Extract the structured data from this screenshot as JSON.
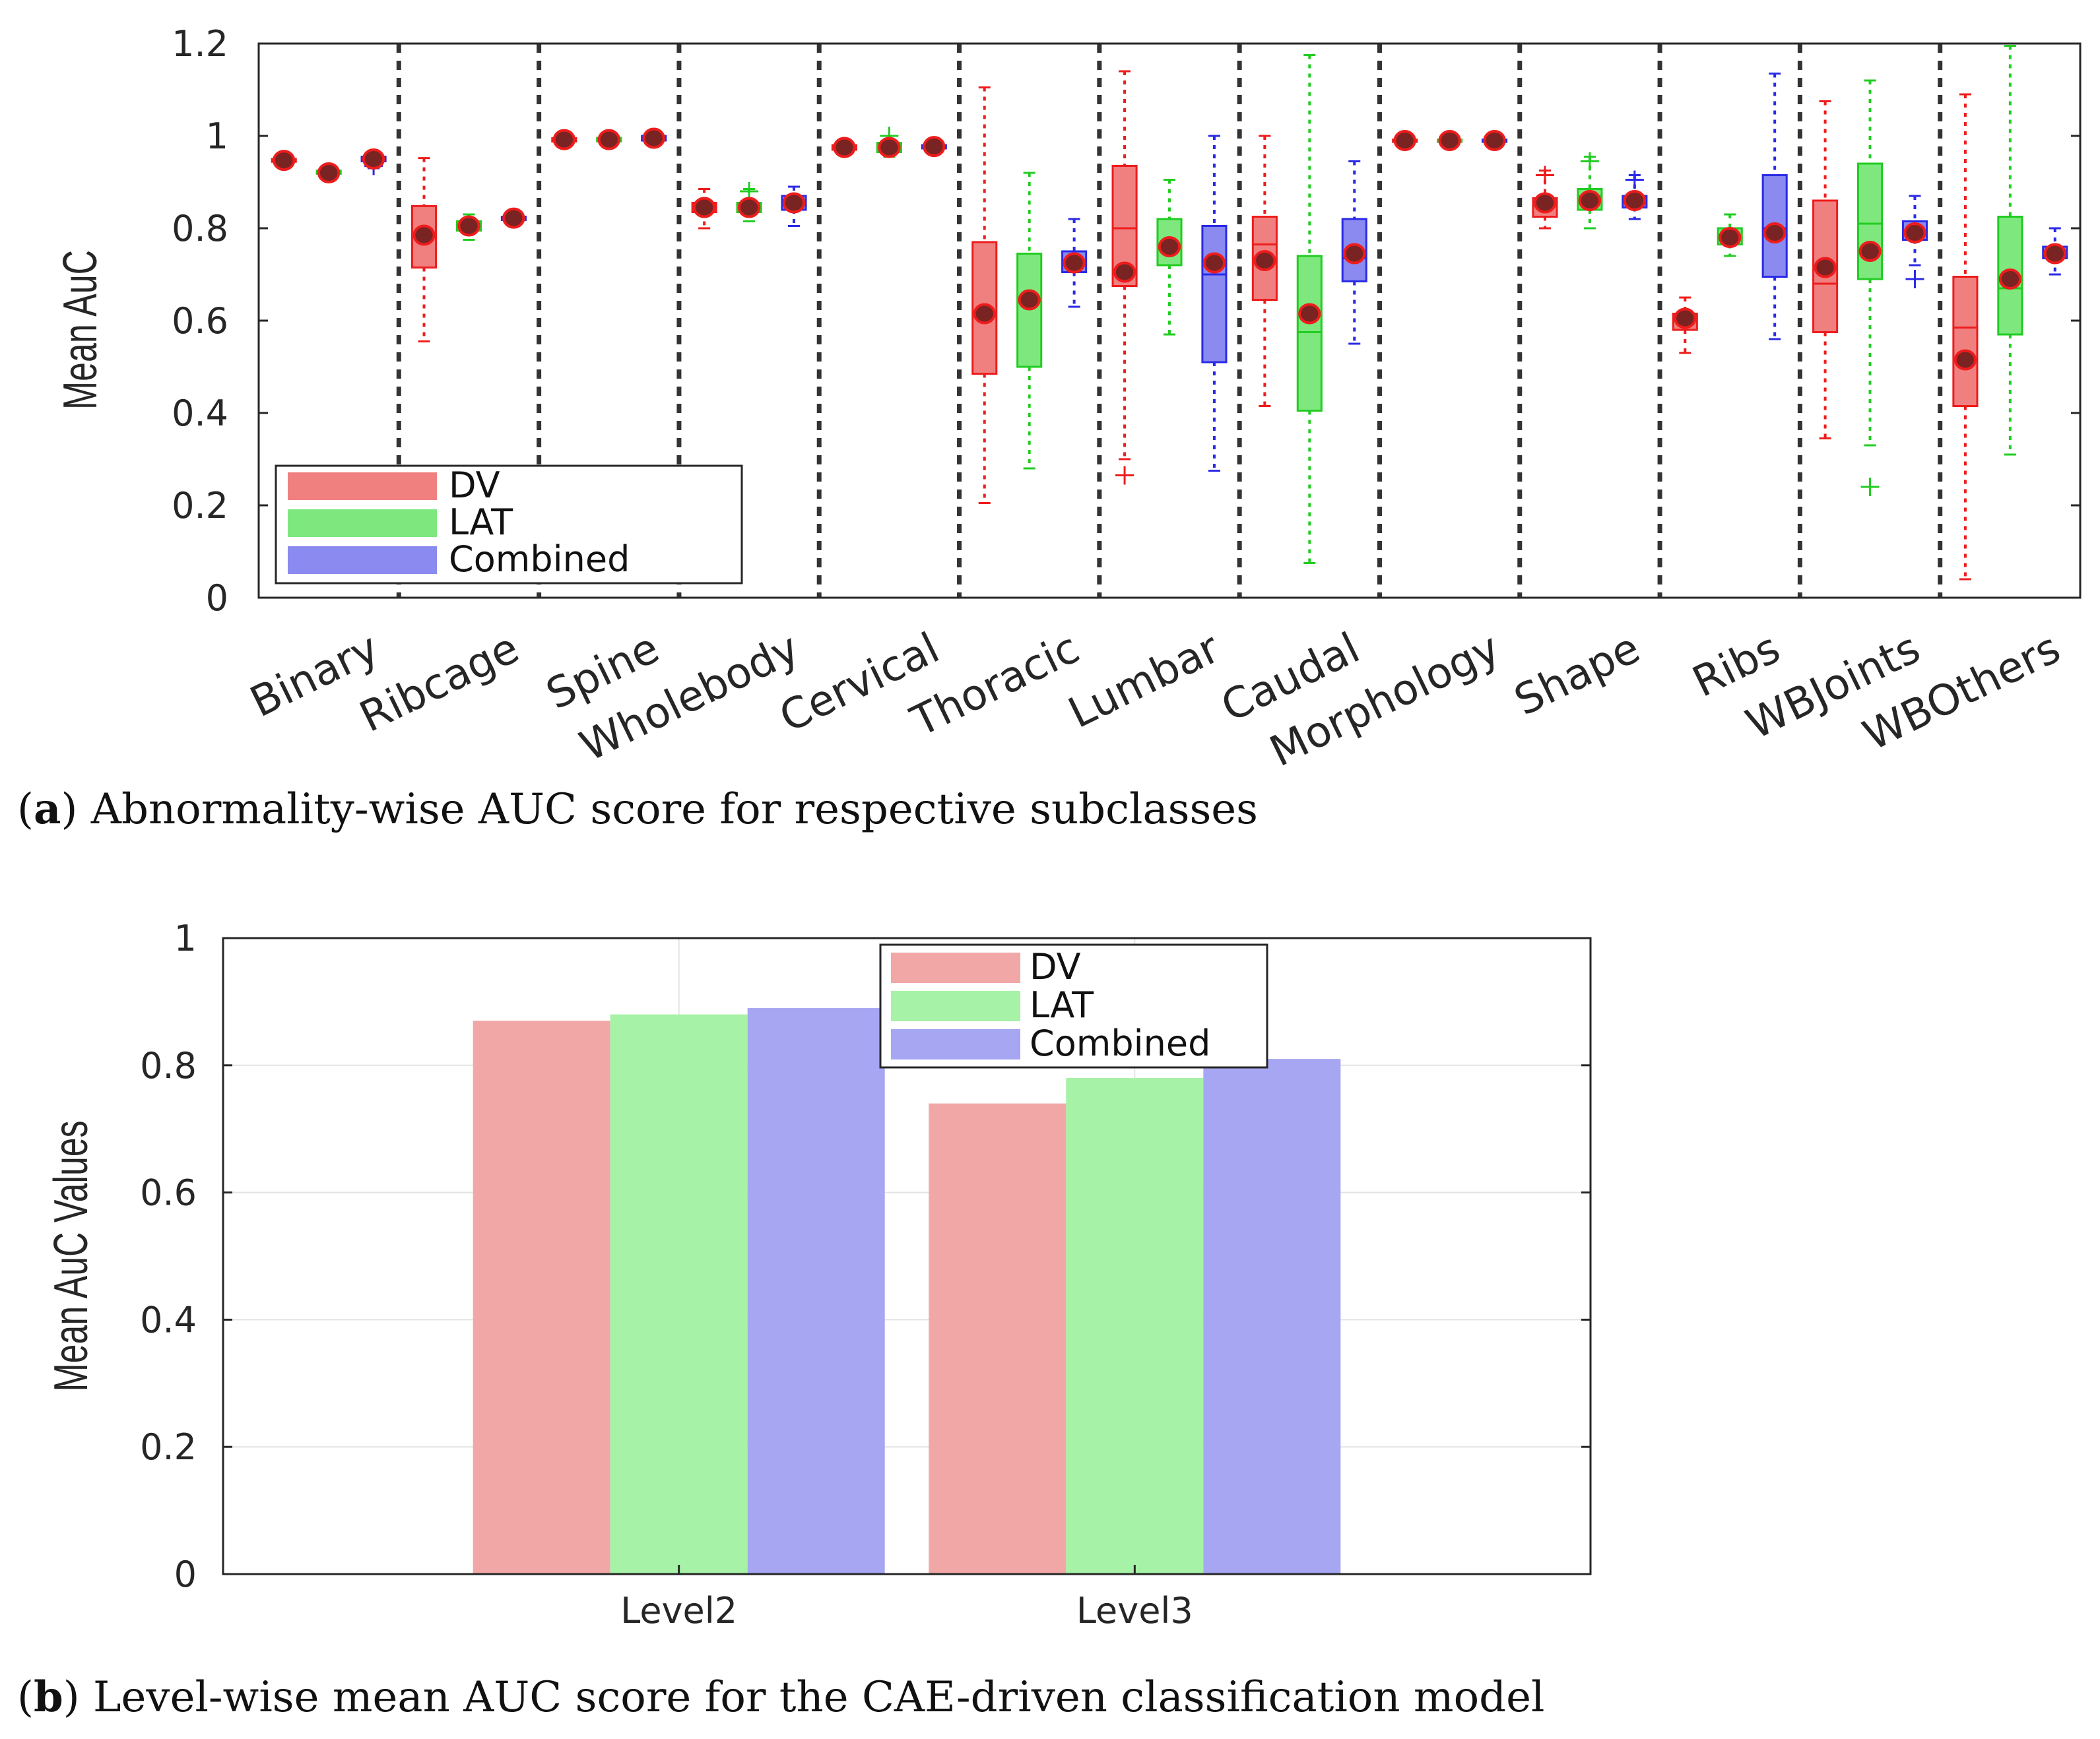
{
  "chart_data": [
    {
      "type": "box",
      "title": "",
      "xlabel": "",
      "ylabel": "Mean AuC",
      "ylim": [
        0,
        1.2
      ],
      "yticks": [
        "0",
        "0.2",
        "0.4",
        "0.6",
        "0.8",
        "1",
        "1.2"
      ],
      "categories": [
        "Binary",
        "Ribcage",
        "Spine",
        "Wholebody",
        "Cervical",
        "Thoracic",
        "Lumbar",
        "Caudal",
        "Morphology",
        "Shape",
        "Ribs",
        "WBJoints",
        "WBOthers"
      ],
      "legend": {
        "placement": "lower-left",
        "entries": [
          "DV",
          "LAT",
          "Combined"
        ]
      },
      "colors": {
        "DV": "#f08080",
        "LAT": "#7ee87e",
        "Combined": "#8a8af0",
        "DV_edge": "#ee1c1c",
        "LAT_edge": "#22cc22",
        "Combined_edge": "#2a2ae6",
        "mean_marker": "#7a2323"
      },
      "series": [
        {
          "name": "DV",
          "boxes": [
            {
              "min": 0.942,
              "q1": 0.944,
              "median": 0.947,
              "q3": 0.95,
              "max": 0.952,
              "mean": 0.947
            },
            {
              "min": 0.555,
              "q1": 0.715,
              "median": 0.785,
              "q3": 0.848,
              "max": 0.952,
              "mean": 0.785
            },
            {
              "min": 0.985,
              "q1": 0.988,
              "median": 0.992,
              "q3": 0.995,
              "max": 1.0,
              "mean": 0.992
            },
            {
              "min": 0.8,
              "q1": 0.835,
              "median": 0.845,
              "q3": 0.855,
              "max": 0.885,
              "mean": 0.845
            },
            {
              "min": 0.965,
              "q1": 0.97,
              "median": 0.975,
              "q3": 0.98,
              "max": 0.99,
              "mean": 0.975
            },
            {
              "min": 0.205,
              "q1": 0.485,
              "median": 0.61,
              "q3": 0.77,
              "max": 1.105,
              "mean": 0.615
            },
            {
              "min": 0.3,
              "q1": 0.675,
              "median": 0.8,
              "q3": 0.935,
              "max": 1.14,
              "mean": 0.705,
              "outliers": [
                0.265
              ]
            },
            {
              "min": 0.415,
              "q1": 0.645,
              "median": 0.765,
              "q3": 0.825,
              "max": 1.0,
              "mean": 0.73
            },
            {
              "min": 0.985,
              "q1": 0.987,
              "median": 0.99,
              "q3": 0.992,
              "max": 0.995,
              "mean": 0.99
            },
            {
              "min": 0.8,
              "q1": 0.825,
              "median": 0.85,
              "q3": 0.865,
              "max": 0.925,
              "mean": 0.855,
              "outliers": [
                0.915
              ]
            },
            {
              "min": 0.53,
              "q1": 0.58,
              "median": 0.6,
              "q3": 0.615,
              "max": 0.65,
              "mean": 0.605
            },
            {
              "min": 0.345,
              "q1": 0.575,
              "median": 0.68,
              "q3": 0.86,
              "max": 1.075,
              "mean": 0.715
            },
            {
              "min": 0.04,
              "q1": 0.415,
              "median": 0.585,
              "q3": 0.695,
              "max": 1.09,
              "mean": 0.515
            }
          ]
        },
        {
          "name": "LAT",
          "boxes": [
            {
              "min": 0.915,
              "q1": 0.918,
              "median": 0.92,
              "q3": 0.925,
              "max": 0.93,
              "mean": 0.92
            },
            {
              "min": 0.775,
              "q1": 0.795,
              "median": 0.805,
              "q3": 0.815,
              "max": 0.83,
              "mean": 0.805
            },
            {
              "min": 0.98,
              "q1": 0.988,
              "median": 0.992,
              "q3": 0.996,
              "max": 1.0,
              "mean": 0.992
            },
            {
              "min": 0.815,
              "q1": 0.835,
              "median": 0.845,
              "q3": 0.855,
              "max": 0.885,
              "mean": 0.845,
              "outliers": [
                0.88
              ]
            },
            {
              "min": 0.955,
              "q1": 0.965,
              "median": 0.975,
              "q3": 0.985,
              "max": 1.0,
              "mean": 0.975,
              "outliers": [
                1.0
              ]
            },
            {
              "min": 0.28,
              "q1": 0.5,
              "median": 0.64,
              "q3": 0.745,
              "max": 0.92,
              "mean": 0.645
            },
            {
              "min": 0.57,
              "q1": 0.72,
              "median": 0.76,
              "q3": 0.82,
              "max": 0.905,
              "mean": 0.76
            },
            {
              "min": 0.075,
              "q1": 0.405,
              "median": 0.575,
              "q3": 0.74,
              "max": 1.175,
              "mean": 0.615
            },
            {
              "min": 0.985,
              "q1": 0.987,
              "median": 0.99,
              "q3": 0.992,
              "max": 0.995,
              "mean": 0.99
            },
            {
              "min": 0.8,
              "q1": 0.84,
              "median": 0.87,
              "q3": 0.885,
              "max": 0.955,
              "mean": 0.86,
              "outliers": [
                0.945
              ]
            },
            {
              "min": 0.74,
              "q1": 0.765,
              "median": 0.785,
              "q3": 0.8,
              "max": 0.83,
              "mean": 0.78
            },
            {
              "min": 0.33,
              "q1": 0.69,
              "median": 0.81,
              "q3": 0.94,
              "max": 1.12,
              "mean": 0.75,
              "outliers": [
                0.24
              ]
            },
            {
              "min": 0.31,
              "q1": 0.57,
              "median": 0.67,
              "q3": 0.825,
              "max": 1.195,
              "mean": 0.69
            }
          ]
        },
        {
          "name": "Combined",
          "boxes": [
            {
              "min": 0.93,
              "q1": 0.945,
              "median": 0.95,
              "q3": 0.955,
              "max": 0.96,
              "mean": 0.95,
              "outliers": [
                0.935
              ]
            },
            {
              "min": 0.815,
              "q1": 0.818,
              "median": 0.822,
              "q3": 0.825,
              "max": 0.828,
              "mean": 0.822
            },
            {
              "min": 0.985,
              "q1": 0.99,
              "median": 0.995,
              "q3": 1.0,
              "max": 1.01,
              "mean": 0.995
            },
            {
              "min": 0.805,
              "q1": 0.84,
              "median": 0.86,
              "q3": 0.87,
              "max": 0.89,
              "mean": 0.855
            },
            {
              "min": 0.97,
              "q1": 0.973,
              "median": 0.977,
              "q3": 0.98,
              "max": 0.983,
              "mean": 0.977
            },
            {
              "min": 0.63,
              "q1": 0.705,
              "median": 0.73,
              "q3": 0.75,
              "max": 0.82,
              "mean": 0.725
            },
            {
              "min": 0.275,
              "q1": 0.51,
              "median": 0.7,
              "q3": 0.805,
              "max": 1.0,
              "mean": 0.725
            },
            {
              "min": 0.55,
              "q1": 0.685,
              "median": 0.735,
              "q3": 0.82,
              "max": 0.945,
              "mean": 0.745
            },
            {
              "min": 0.985,
              "q1": 0.987,
              "median": 0.99,
              "q3": 0.992,
              "max": 0.995,
              "mean": 0.99
            },
            {
              "min": 0.82,
              "q1": 0.845,
              "median": 0.86,
              "q3": 0.87,
              "max": 0.915,
              "mean": 0.86,
              "outliers": [
                0.905
              ]
            },
            {
              "min": 0.56,
              "q1": 0.695,
              "median": 0.8,
              "q3": 0.915,
              "max": 1.135,
              "mean": 0.79
            },
            {
              "min": 0.72,
              "q1": 0.775,
              "median": 0.79,
              "q3": 0.815,
              "max": 0.87,
              "mean": 0.79,
              "outliers": [
                0.69
              ]
            },
            {
              "min": 0.7,
              "q1": 0.735,
              "median": 0.745,
              "q3": 0.76,
              "max": 0.8,
              "mean": 0.745
            }
          ]
        }
      ],
      "caption": {
        "label": "a",
        "text": ") Abnormality-wise AUC score for respective subclasses"
      }
    },
    {
      "type": "bar",
      "title": "",
      "xlabel": "",
      "ylabel": "Mean AuC Values",
      "ylim": [
        0,
        1
      ],
      "yticks": [
        "0",
        "0.2",
        "0.4",
        "0.6",
        "0.8",
        "1"
      ],
      "categories": [
        "Level2",
        "Level3"
      ],
      "grid": true,
      "legend": {
        "placement": "top-center",
        "entries": [
          "DV",
          "LAT",
          "Combined"
        ]
      },
      "colors": {
        "DV": "#f2a7a7",
        "LAT": "#a6f2a6",
        "Combined": "#a6a6f2"
      },
      "series": [
        {
          "name": "DV",
          "values": [
            0.87,
            0.74
          ]
        },
        {
          "name": "LAT",
          "values": [
            0.88,
            0.78
          ]
        },
        {
          "name": "Combined",
          "values": [
            0.89,
            0.81
          ]
        }
      ],
      "caption": {
        "label": "b",
        "text": ") Level-wise mean AUC score for the CAE-driven classification model"
      }
    }
  ]
}
